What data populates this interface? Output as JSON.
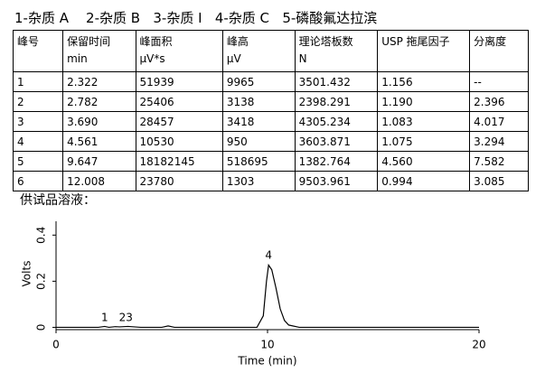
{
  "legend_line": "1-杂质 A    2-杂质 B   3-杂质 I   4-杂质 C   5-磷酸氟达拉滨",
  "table": {
    "header": [
      [
        "峰号"
      ],
      [
        "保留时间",
        "min"
      ],
      [
        "峰面积",
        "µV*s"
      ],
      [
        "峰高",
        "µV"
      ],
      [
        "理论塔板数",
        "N"
      ],
      [
        "USP 拖尾因子"
      ],
      [
        "分离度"
      ]
    ],
    "rows": [
      [
        "1",
        "2.322",
        "51939",
        "9965",
        "3501.432",
        "1.156",
        "--"
      ],
      [
        "2",
        "2.782",
        "25406",
        "3138",
        "2398.291",
        "1.190",
        "2.396"
      ],
      [
        "3",
        "3.690",
        "28457",
        "3418",
        "4305.234",
        "1.083",
        "4.017"
      ],
      [
        "4",
        "4.561",
        "10530",
        "950",
        "3603.871",
        "1.075",
        "3.294"
      ],
      [
        "5",
        "9.647",
        "18182145",
        "518695",
        "1382.764",
        "4.560",
        "7.582"
      ],
      [
        "6",
        "12.008",
        "23780",
        "1303",
        "9503.961",
        "0.994",
        "3.085"
      ]
    ]
  },
  "sample_label": "供试品溶液：",
  "chart_data": {
    "type": "line",
    "xlabel": "Time (min)",
    "ylabel": "Volts",
    "x": [
      0,
      2.0,
      2.3,
      2.5,
      2.8,
      3.0,
      3.4,
      3.7,
      4.0,
      5.0,
      5.3,
      5.6,
      9.5,
      9.8,
      9.95,
      10.05,
      10.2,
      10.4,
      10.6,
      10.8,
      11.0,
      11.5,
      20
    ],
    "y": [
      0,
      0,
      0.004,
      0,
      0.003,
      0.002,
      0.004,
      0.002,
      0,
      0,
      0.006,
      0,
      0,
      0.05,
      0.2,
      0.27,
      0.25,
      0.17,
      0.08,
      0.03,
      0.01,
      0,
      0
    ],
    "color": "#000000",
    "xlim": [
      0,
      20
    ],
    "xticks": [
      0,
      10,
      20
    ],
    "ylim": [
      -0.01,
      0.46
    ],
    "yticks": [
      0,
      0.2,
      0.4
    ],
    "annotations": [
      {
        "text": "1",
        "x": 2.3,
        "y": 0.01
      },
      {
        "text": "23",
        "x": 3.3,
        "y": 0.01
      },
      {
        "text": "4",
        "x": 10.05,
        "y": 0.28
      }
    ]
  }
}
